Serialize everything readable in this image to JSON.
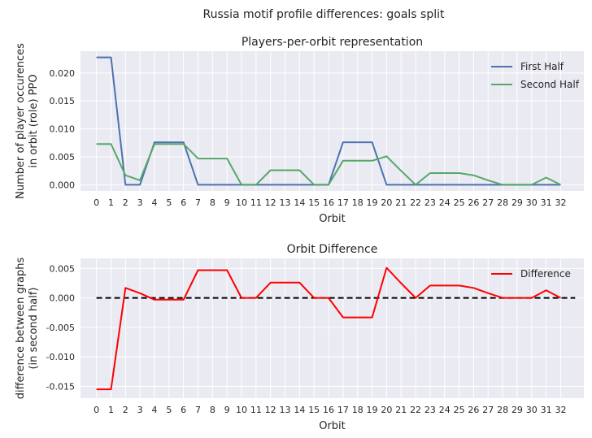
{
  "suptitle": "Russia motif profile differences: goals split",
  "chart_data": [
    {
      "type": "line",
      "title": "Players-per-orbit representation",
      "xlabel": "Orbit",
      "ylabel_lines": [
        "Number of player occurences",
        "in orbit (role) PPO"
      ],
      "x": [
        0,
        1,
        2,
        3,
        4,
        5,
        6,
        7,
        8,
        9,
        10,
        11,
        12,
        13,
        14,
        15,
        16,
        17,
        18,
        19,
        20,
        21,
        22,
        23,
        24,
        25,
        26,
        27,
        28,
        29,
        30,
        31,
        32
      ],
      "xlim": [
        -1.1,
        33.6
      ],
      "ylim": [
        -0.0011,
        0.0239
      ],
      "yticks": [
        0.0,
        0.005,
        0.01,
        0.015,
        0.02
      ],
      "ytick_labels": [
        "0.000",
        "0.005",
        "0.010",
        "0.015",
        "0.020"
      ],
      "grid": true,
      "legend_position": "top-right",
      "series": [
        {
          "name": "First Half",
          "color": "#4c72b0",
          "values": [
            0.0228,
            0.0228,
            0,
            0,
            0.0076,
            0.0076,
            0.0076,
            0,
            0,
            0,
            0,
            0,
            0,
            0,
            0,
            0,
            0,
            0.0076,
            0.0076,
            0.0076,
            0,
            0,
            0,
            0,
            0,
            0,
            0,
            0,
            0,
            0,
            0,
            0,
            0
          ]
        },
        {
          "name": "Second Half",
          "color": "#55a868",
          "values": [
            0.0073,
            0.0073,
            0.0017,
            0.0008,
            0.0073,
            0.0073,
            0.0073,
            0.0047,
            0.0047,
            0.0047,
            0,
            0,
            0.0026,
            0.0026,
            0.0026,
            0,
            0,
            0.0043,
            0.0043,
            0.0043,
            0.0051,
            0.0025,
            0,
            0.0021,
            0.0021,
            0.0021,
            0.0017,
            0.0008,
            0,
            0,
            0,
            0.0013,
            0
          ]
        }
      ]
    },
    {
      "type": "line",
      "title": "Orbit Difference",
      "xlabel": "Orbit",
      "ylabel_lines": [
        "difference between graphs",
        "(in second half)"
      ],
      "x": [
        0,
        1,
        2,
        3,
        4,
        5,
        6,
        7,
        8,
        9,
        10,
        11,
        12,
        13,
        14,
        15,
        16,
        17,
        18,
        19,
        20,
        21,
        22,
        23,
        24,
        25,
        26,
        27,
        28,
        29,
        30,
        31,
        32
      ],
      "xlim": [
        -1.1,
        33.6
      ],
      "ylim": [
        -0.017,
        0.0067
      ],
      "yticks": [
        -0.015,
        -0.01,
        -0.005,
        0.0,
        0.005
      ],
      "ytick_labels": [
        "-0.015",
        "-0.010",
        "-0.005",
        "0.000",
        "0.005"
      ],
      "grid": true,
      "legend_position": "top-right",
      "baseline": {
        "y": 0,
        "x_range": [
          0,
          33
        ],
        "color": "#000000",
        "dashed": true
      },
      "series": [
        {
          "name": "Difference",
          "color": "#ff0000",
          "values": [
            -0.0155,
            -0.0155,
            0.0017,
            0.0008,
            -0.0003,
            -0.0003,
            -0.0003,
            0.0047,
            0.0047,
            0.0047,
            0,
            0,
            0.0026,
            0.0026,
            0.0026,
            0,
            0,
            -0.0033,
            -0.0033,
            -0.0033,
            0.0051,
            0.0025,
            0,
            0.0021,
            0.0021,
            0.0021,
            0.0017,
            0.0008,
            0,
            0,
            0,
            0.0013,
            0
          ]
        }
      ]
    }
  ]
}
